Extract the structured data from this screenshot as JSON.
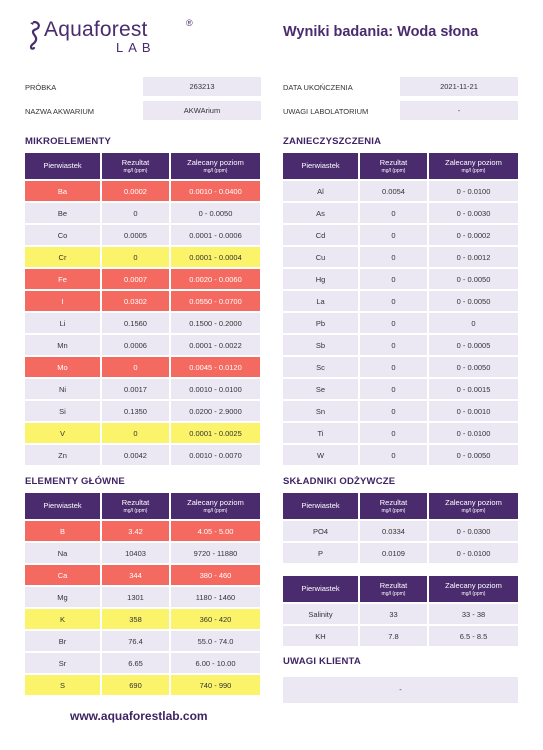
{
  "header": {
    "brand": "Aquaforest",
    "registered": "®",
    "lab": "LAB",
    "title": "Wyniki badania: Woda słona"
  },
  "info": {
    "sample_label": "PRÓBKA",
    "sample_value": "263213",
    "tank_label": "NAZWA AKWARIUM",
    "tank_value": "AKWArium",
    "date_label": "DATA UKOŃCZENIA",
    "date_value": "2021-11-21",
    "lab_notes_label": "UWAGI LABOLATORIUM",
    "lab_notes_value": "-"
  },
  "headers": {
    "element": "Pierwiastek",
    "result": "Rezultat",
    "unit": "mg/l (ppm)",
    "recommended": "Zalecany poziom"
  },
  "sections": {
    "micro": {
      "title": "MIKROELEMENTY",
      "rows": [
        {
          "element": "Ba",
          "result": "0.0002",
          "range": "0.0010 - 0.0400",
          "status": "red"
        },
        {
          "element": "Be",
          "result": "0",
          "range": "0 - 0.0050",
          "status": "ok"
        },
        {
          "element": "Co",
          "result": "0.0005",
          "range": "0.0001 - 0.0006",
          "status": "ok"
        },
        {
          "element": "Cr",
          "result": "0",
          "range": "0.0001 - 0.0004",
          "status": "yellow"
        },
        {
          "element": "Fe",
          "result": "0.0007",
          "range": "0.0020 - 0.0060",
          "status": "red"
        },
        {
          "element": "I",
          "result": "0.0302",
          "range": "0.0550 - 0.0700",
          "status": "red"
        },
        {
          "element": "Li",
          "result": "0.1560",
          "range": "0.1500 - 0.2000",
          "status": "ok"
        },
        {
          "element": "Mn",
          "result": "0.0006",
          "range": "0.0001 - 0.0022",
          "status": "ok"
        },
        {
          "element": "Mo",
          "result": "0",
          "range": "0.0045 - 0.0120",
          "status": "red"
        },
        {
          "element": "Ni",
          "result": "0.0017",
          "range": "0.0010 - 0.0100",
          "status": "ok"
        },
        {
          "element": "Si",
          "result": "0.1350",
          "range": "0.0200 - 2.9000",
          "status": "ok"
        },
        {
          "element": "V",
          "result": "0",
          "range": "0.0001 - 0.0025",
          "status": "yellow"
        },
        {
          "element": "Zn",
          "result": "0.0042",
          "range": "0.0010 - 0.0070",
          "status": "ok"
        }
      ]
    },
    "pollutants": {
      "title": "ZANIECZYSZCZENIA",
      "rows": [
        {
          "element": "Al",
          "result": "0.0054",
          "range": "0 - 0.0100",
          "status": "ok"
        },
        {
          "element": "As",
          "result": "0",
          "range": "0 - 0.0030",
          "status": "ok"
        },
        {
          "element": "Cd",
          "result": "0",
          "range": "0 - 0.0002",
          "status": "ok"
        },
        {
          "element": "Cu",
          "result": "0",
          "range": "0 - 0.0012",
          "status": "ok"
        },
        {
          "element": "Hg",
          "result": "0",
          "range": "0 - 0.0050",
          "status": "ok"
        },
        {
          "element": "La",
          "result": "0",
          "range": "0 - 0.0050",
          "status": "ok"
        },
        {
          "element": "Pb",
          "result": "0",
          "range": "0",
          "status": "ok"
        },
        {
          "element": "Sb",
          "result": "0",
          "range": "0 - 0.0005",
          "status": "ok"
        },
        {
          "element": "Sc",
          "result": "0",
          "range": "0 - 0.0050",
          "status": "ok"
        },
        {
          "element": "Se",
          "result": "0",
          "range": "0 - 0.0015",
          "status": "ok"
        },
        {
          "element": "Sn",
          "result": "0",
          "range": "0 - 0.0010",
          "status": "ok"
        },
        {
          "element": "Ti",
          "result": "0",
          "range": "0 - 0.0100",
          "status": "ok"
        },
        {
          "element": "W",
          "result": "0",
          "range": "0 - 0.0050",
          "status": "ok"
        }
      ]
    },
    "main": {
      "title": "ELEMENTY GŁÓWNE",
      "rows": [
        {
          "element": "B",
          "result": "3.42",
          "range": "4.05 - 5.00",
          "status": "red"
        },
        {
          "element": "Na",
          "result": "10403",
          "range": "9720 - 11880",
          "status": "ok"
        },
        {
          "element": "Ca",
          "result": "344",
          "range": "380 - 460",
          "status": "red"
        },
        {
          "element": "Mg",
          "result": "1301",
          "range": "1180 - 1460",
          "status": "ok"
        },
        {
          "element": "K",
          "result": "358",
          "range": "360 - 420",
          "status": "yellow"
        },
        {
          "element": "Br",
          "result": "76.4",
          "range": "55.0 - 74.0",
          "status": "ok"
        },
        {
          "element": "Sr",
          "result": "6.65",
          "range": "6.00 - 10.00",
          "status": "ok"
        },
        {
          "element": "S",
          "result": "690",
          "range": "740 - 990",
          "status": "yellow"
        }
      ]
    },
    "nutrients": {
      "title": "SKŁADNIKI ODŻYWCZE",
      "rows": [
        {
          "element": "PO4",
          "result": "0.0334",
          "range": "0 - 0.0300",
          "status": "ok"
        },
        {
          "element": "P",
          "result": "0.0109",
          "range": "0 - 0.0100",
          "status": "ok"
        }
      ]
    },
    "other": {
      "rows": [
        {
          "element": "Salinity",
          "result": "33",
          "range": "33 - 38",
          "status": "ok"
        },
        {
          "element": "KH",
          "result": "7.8",
          "range": "6.5 - 8.5",
          "status": "ok"
        }
      ]
    },
    "client": {
      "title": "UWAGI KLIENTA",
      "value": "-"
    }
  },
  "footer": {
    "website": "www.aquaforestlab.com"
  },
  "colors": {
    "brand_purple": "#4a2b6d",
    "cell_bg": "#ebe8f4",
    "alert_red": "#f46a60",
    "warn_yellow": "#fbf46a"
  }
}
